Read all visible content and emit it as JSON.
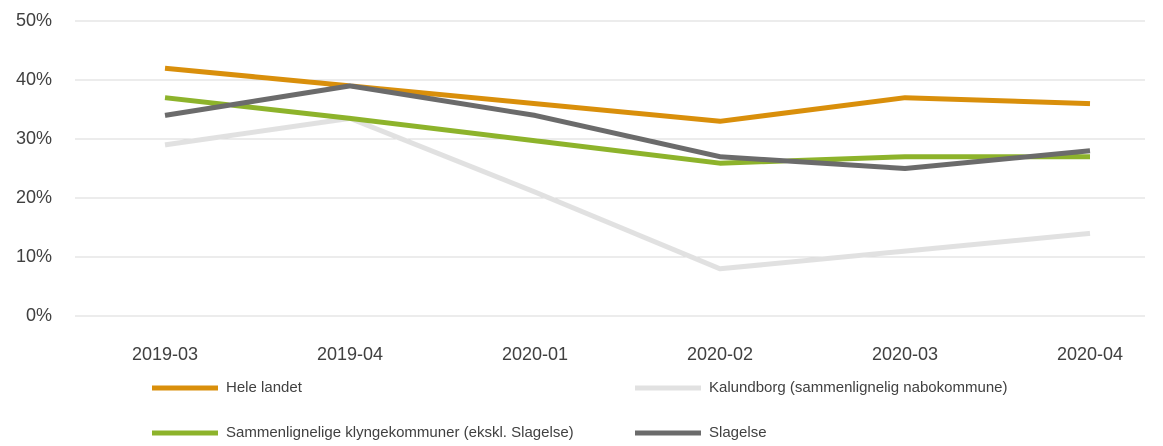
{
  "chart_data": {
    "type": "line",
    "categories": [
      "2019-03",
      "2019-04",
      "2020-01",
      "2020-02",
      "2020-03",
      "2020-04"
    ],
    "series": [
      {
        "name": "Hele landet",
        "color": "#d98f0b",
        "values": [
          42,
          39,
          36,
          33,
          37,
          36
        ]
      },
      {
        "name": "Kalundborg (sammenlignelig nabokommune)",
        "color": "#e1e1e1",
        "values": [
          29,
          33.5,
          21,
          8,
          11,
          14
        ]
      },
      {
        "name": "Sammenlignelige klyngekommuner (ekskl. Slagelse)",
        "color": "#8db32b",
        "values": [
          37,
          33.5,
          29.7,
          25.9,
          27,
          27
        ]
      },
      {
        "name": "Slagelse",
        "color": "#6b6b6b",
        "values": [
          34,
          39,
          34,
          27,
          25,
          28
        ]
      }
    ],
    "ylim": [
      0,
      50
    ],
    "yticks": [
      {
        "value": 0,
        "label": "0%"
      },
      {
        "value": 10,
        "label": "10%"
      },
      {
        "value": 20,
        "label": "20%"
      },
      {
        "value": 30,
        "label": "30%"
      },
      {
        "value": 40,
        "label": "40%"
      },
      {
        "value": 50,
        "label": "50%"
      }
    ],
    "grid": true
  }
}
